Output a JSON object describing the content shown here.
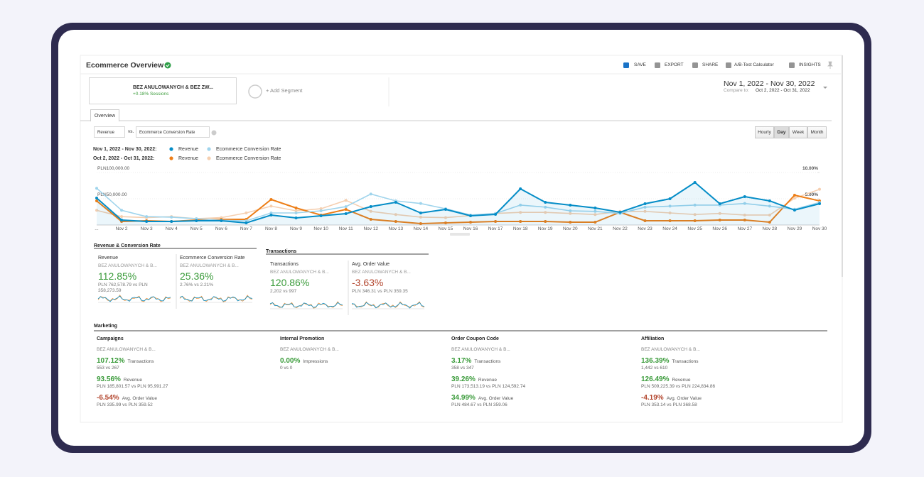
{
  "header": {
    "title": "Ecommerce Overview",
    "actions": [
      "SAVE",
      "EXPORT",
      "SHARE",
      "A/B-Test Calculator",
      "INSIGHTS"
    ]
  },
  "segment": {
    "name": "BEZ ANULOWANYCH & BEZ ZW...",
    "sub": "+0.18% Sessions",
    "add": "+ Add Segment"
  },
  "date": {
    "range": "Nov 1, 2022 - Nov 30, 2022",
    "compare_label": "Compare to:",
    "compare": "Oct 2, 2022 - Oct 31, 2022"
  },
  "tab": "Overview",
  "controls": {
    "metric1": "Revenue",
    "vs": "vs.",
    "metric2": "Ecommerce Conversion Rate",
    "granularity": [
      "Hourly",
      "Day",
      "Week",
      "Month"
    ],
    "selected": "Day"
  },
  "chart_data": {
    "type": "line",
    "legend_periods": [
      "Nov 1, 2022 - Nov 30, 2022:",
      "Oct 2, 2022 - Oct 31, 2022:"
    ],
    "categories": [
      "...",
      "Nov 2",
      "Nov 3",
      "Nov 4",
      "Nov 5",
      "Nov 6",
      "Nov 7",
      "Nov 8",
      "Nov 9",
      "Nov 10",
      "Nov 11",
      "Nov 12",
      "Nov 13",
      "Nov 14",
      "Nov 15",
      "Nov 16",
      "Nov 17",
      "Nov 18",
      "Nov 19",
      "Nov 20",
      "Nov 21",
      "Nov 22",
      "Nov 23",
      "Nov 24",
      "Nov 25",
      "Nov 26",
      "Nov 27",
      "Nov 28",
      "Nov 29",
      "Nov 30"
    ],
    "ylim": [
      0,
      100000
    ],
    "yticks": [
      {
        "value": 50000,
        "label": "PLN50,000.00"
      },
      {
        "value": 100000,
        "label": "PLN100,000.00"
      }
    ],
    "y2lim": [
      0,
      10
    ],
    "y2ticks": [
      {
        "value": 5,
        "label": "5.00%"
      },
      {
        "value": 10,
        "label": "10.00%"
      }
    ],
    "grid": true,
    "series": [
      {
        "name": "Revenue",
        "period": 0,
        "color": "#058dc7",
        "area": true,
        "values": [
          51300,
          9500,
          6800,
          6800,
          8100,
          8100,
          4100,
          18900,
          13500,
          17600,
          21600,
          35100,
          43200,
          23000,
          29700,
          17600,
          20300,
          68900,
          43200,
          37800,
          32400,
          24300,
          40500,
          50000,
          81100,
          40500,
          54000,
          45900,
          28400,
          40500
        ]
      },
      {
        "name": "Ecommerce Conversion Rate",
        "period": 0,
        "color": "#9fd4ec",
        "axis": "y2",
        "values": [
          7.0,
          2.8,
          1.6,
          1.5,
          1.2,
          0.9,
          0.8,
          2.3,
          2.3,
          2.7,
          3.5,
          5.9,
          4.6,
          4.1,
          3.1,
          1.9,
          2.2,
          3.8,
          3.4,
          2.7,
          2.6,
          2.2,
          3.4,
          3.6,
          3.8,
          3.8,
          4.1,
          3.6,
          3.0,
          4.3
        ]
      },
      {
        "name": "Revenue",
        "period": 1,
        "color": "#ed7e17",
        "values": [
          45900,
          6800,
          8100,
          6800,
          9500,
          10800,
          10800,
          48600,
          32400,
          18900,
          29700,
          10800,
          6800,
          2700,
          4100,
          5400,
          6800,
          6800,
          6800,
          5400,
          5400,
          24300,
          8100,
          8100,
          8100,
          9500,
          9500,
          5400,
          56700,
          45900
        ]
      },
      {
        "name": "Ecommerce Conversion Rate",
        "period": 1,
        "color": "#f5cfb0",
        "axis": "y2",
        "values": [
          2.8,
          1.6,
          1.4,
          1.6,
          1.2,
          1.4,
          2.3,
          3.6,
          2.7,
          3.1,
          4.7,
          2.6,
          2.0,
          1.5,
          1.4,
          1.8,
          2.2,
          2.4,
          2.4,
          2.2,
          2.0,
          2.6,
          2.6,
          2.3,
          2.0,
          2.2,
          1.9,
          1.9,
          5.1,
          6.8
        ]
      }
    ]
  },
  "scorecards": [
    {
      "title": "Revenue & Conversion Rate",
      "cards": [
        {
          "metric": "Revenue",
          "segment": "BEZ ANULOWANYCH & B...",
          "change": "112.85%",
          "detail": "PLN 762,578.79 vs PLN 358,273.59"
        },
        {
          "metric": "Ecommerce Conversion Rate",
          "segment": "BEZ ANULOWANYCH & B...",
          "change": "25.36%",
          "detail": "2.76% vs 2.21%"
        }
      ]
    },
    {
      "title": "Transactions",
      "cards": [
        {
          "metric": "Transactions",
          "segment": "BEZ ANULOWANYCH & B...",
          "change": "120.86%",
          "detail": "2,202 vs 997"
        },
        {
          "metric": "Avg. Order Value",
          "segment": "BEZ ANULOWANYCH & B...",
          "change": "-3.63%",
          "detail": "PLN 346.31 vs PLN 359.35"
        }
      ]
    }
  ],
  "marketing": {
    "title": "Marketing",
    "columns": [
      {
        "title": "Campaigns",
        "segment": "BEZ ANULOWANYCH & B...",
        "items": [
          {
            "change": "107.12%",
            "metric": "Transactions",
            "detail": "553 vs 267"
          },
          {
            "change": "93.56%",
            "metric": "Revenue",
            "detail": "PLN 185,801.57 vs PLN 95,991.27"
          },
          {
            "change": "-6.54%",
            "metric": "Avg. Order Value",
            "detail": "PLN 335.99 vs PLN 359.52"
          }
        ]
      },
      {
        "title": "Internal Promotion",
        "segment": "BEZ ANULOWANYCH & B...",
        "items": [
          {
            "change": "0.00%",
            "metric": "Impressions",
            "detail": "0 vs 0"
          }
        ]
      },
      {
        "title": "Order Coupon Code",
        "segment": "BEZ ANULOWANYCH & B...",
        "items": [
          {
            "change": "3.17%",
            "metric": "Transactions",
            "detail": "358 vs 347"
          },
          {
            "change": "39.26%",
            "metric": "Revenue",
            "detail": "PLN 173,513.19 vs PLN 124,592.74"
          },
          {
            "change": "34.99%",
            "metric": "Avg. Order Value",
            "detail": "PLN 484.67 vs PLN 359.06"
          }
        ]
      },
      {
        "title": "Affiliation",
        "segment": "BEZ ANULOWANYCH & B...",
        "items": [
          {
            "change": "136.39%",
            "metric": "Transactions",
            "detail": "1,442 vs 610"
          },
          {
            "change": "126.49%",
            "metric": "Revenue",
            "detail": "PLN 509,225.39 vs PLN 224,834.86"
          },
          {
            "change": "-4.19%",
            "metric": "Avg. Order Value",
            "detail": "PLN 353.14 vs PLN 368.58"
          }
        ]
      }
    ]
  }
}
